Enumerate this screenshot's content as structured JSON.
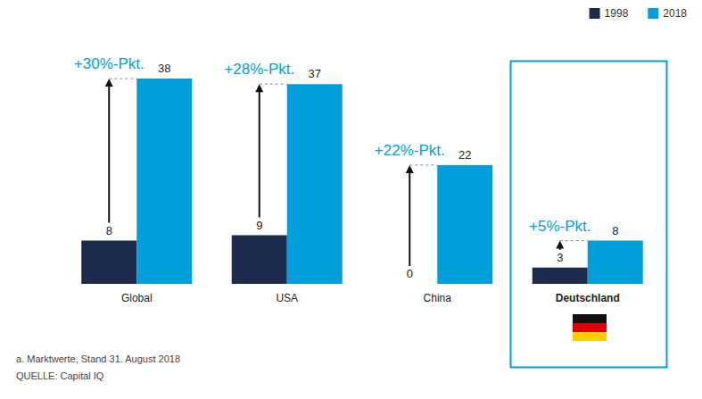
{
  "chart_data": {
    "type": "bar",
    "categories": [
      "Global",
      "USA",
      "China",
      "Deutschland"
    ],
    "series": [
      {
        "name": "1998",
        "color": "#1c2b4b",
        "values": [
          8,
          9,
          0,
          3
        ]
      },
      {
        "name": "2018",
        "color": "#009fdb",
        "values": [
          38,
          37,
          22,
          8
        ]
      }
    ],
    "annotations": [
      "+30%-Pkt.",
      "+28%-Pkt.",
      "+22%-Pkt.",
      "+5%-Pkt."
    ],
    "notes": [
      "a. Marktwerte, Stand 31. August 2018",
      "QUELLE: Capital IQ"
    ],
    "ylim": [
      0,
      40
    ],
    "data_labels": true,
    "tick_labels": "x",
    "grid": false,
    "legend": "top-right"
  }
}
